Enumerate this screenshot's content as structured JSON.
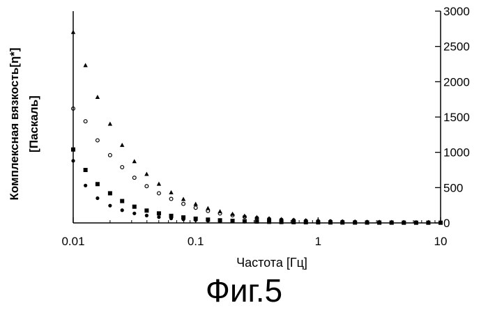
{
  "figure": {
    "caption": "Фиг.5"
  },
  "chart_data": {
    "type": "scatter",
    "title": "",
    "xlabel": "Частота [Гц]",
    "ylabel_lines": [
      "Комплексная вязкость[η*]",
      "[Паскаль]"
    ],
    "x_scale": "log",
    "xlim": [
      0.01,
      10
    ],
    "x_ticks": [
      0.01,
      0.1,
      1,
      10
    ],
    "x_tick_labels": [
      "0.01",
      "0.1",
      "1",
      "10"
    ],
    "ylim": [
      0,
      3000
    ],
    "y_ticks": [
      0,
      500,
      1000,
      1500,
      2000,
      2500,
      3000
    ],
    "y_tick_labels": [
      "0",
      "500",
      "1000",
      "1500",
      "2000",
      "2500",
      "3000"
    ],
    "y_axis_position": "right",
    "grid": false,
    "legend": "none",
    "marker_color": "#000000",
    "series": [
      {
        "marker": "triangle",
        "points": [
          [
            0.01,
            2700
          ],
          [
            0.0126,
            2230
          ],
          [
            0.0158,
            1780
          ],
          [
            0.02,
            1400
          ],
          [
            0.0251,
            1100
          ],
          [
            0.0316,
            870
          ],
          [
            0.0398,
            690
          ],
          [
            0.0501,
            550
          ],
          [
            0.0631,
            430
          ],
          [
            0.0794,
            335
          ],
          [
            0.1,
            265
          ],
          [
            0.126,
            205
          ],
          [
            0.158,
            160
          ],
          [
            0.2,
            125
          ],
          [
            0.251,
            98
          ],
          [
            0.316,
            78
          ],
          [
            0.398,
            62
          ],
          [
            0.501,
            50
          ],
          [
            0.631,
            41
          ],
          [
            0.794,
            34
          ],
          [
            1,
            28
          ],
          [
            1.26,
            23
          ],
          [
            1.58,
            19
          ],
          [
            2,
            16
          ],
          [
            2.51,
            13
          ],
          [
            3.16,
            11
          ],
          [
            3.98,
            9
          ],
          [
            5.01,
            8
          ],
          [
            6.31,
            7
          ],
          [
            7.94,
            6
          ],
          [
            10,
            5
          ]
        ]
      },
      {
        "marker": "circle-open",
        "points": [
          [
            0.01,
            1620
          ],
          [
            0.0126,
            1440
          ],
          [
            0.0158,
            1170
          ],
          [
            0.02,
            960
          ],
          [
            0.0251,
            790
          ],
          [
            0.0316,
            640
          ],
          [
            0.0398,
            520
          ],
          [
            0.0501,
            420
          ],
          [
            0.0631,
            340
          ],
          [
            0.0794,
            270
          ],
          [
            0.1,
            215
          ],
          [
            0.126,
            170
          ],
          [
            0.158,
            135
          ],
          [
            0.2,
            108
          ],
          [
            0.251,
            86
          ],
          [
            0.316,
            69
          ],
          [
            0.398,
            55
          ],
          [
            0.501,
            45
          ],
          [
            0.631,
            37
          ],
          [
            0.794,
            30
          ],
          [
            1,
            25
          ],
          [
            1.26,
            21
          ],
          [
            1.58,
            17
          ],
          [
            2,
            14
          ],
          [
            2.51,
            12
          ],
          [
            3.16,
            10
          ],
          [
            3.98,
            8
          ],
          [
            5.01,
            7
          ],
          [
            6.31,
            6
          ],
          [
            7.94,
            5
          ],
          [
            10,
            4
          ]
        ]
      },
      {
        "marker": "square",
        "points": [
          [
            0.01,
            1040
          ],
          [
            0.0126,
            750
          ],
          [
            0.0158,
            550
          ],
          [
            0.02,
            420
          ],
          [
            0.0251,
            310
          ],
          [
            0.0316,
            230
          ],
          [
            0.0398,
            175
          ],
          [
            0.0501,
            135
          ],
          [
            0.0631,
            100
          ],
          [
            0.0794,
            78
          ],
          [
            0.1,
            60
          ],
          [
            0.126,
            47
          ],
          [
            0.158,
            37
          ],
          [
            0.2,
            30
          ],
          [
            0.251,
            24
          ],
          [
            0.316,
            19
          ],
          [
            0.398,
            16
          ],
          [
            0.501,
            13
          ],
          [
            0.631,
            11
          ],
          [
            0.794,
            9
          ],
          [
            1,
            8
          ],
          [
            1.26,
            7
          ],
          [
            1.58,
            6
          ],
          [
            2,
            5
          ],
          [
            2.51,
            5
          ],
          [
            3.16,
            4
          ],
          [
            3.98,
            4
          ],
          [
            5.01,
            3
          ],
          [
            6.31,
            3
          ],
          [
            7.94,
            3
          ],
          [
            10,
            3
          ]
        ]
      },
      {
        "marker": "circle-filled",
        "points": [
          [
            0.01,
            880
          ],
          [
            0.0126,
            530
          ],
          [
            0.0158,
            350
          ],
          [
            0.02,
            245
          ],
          [
            0.0251,
            180
          ],
          [
            0.0316,
            135
          ],
          [
            0.0398,
            105
          ],
          [
            0.0501,
            82
          ],
          [
            0.0631,
            64
          ],
          [
            0.0794,
            50
          ],
          [
            0.1,
            40
          ],
          [
            0.126,
            32
          ],
          [
            0.158,
            26
          ],
          [
            0.2,
            21
          ],
          [
            0.251,
            17
          ],
          [
            0.316,
            14
          ],
          [
            0.398,
            12
          ],
          [
            0.501,
            10
          ],
          [
            0.631,
            8
          ],
          [
            0.794,
            7
          ],
          [
            1,
            6
          ],
          [
            1.26,
            5
          ],
          [
            1.58,
            5
          ],
          [
            2,
            4
          ],
          [
            2.51,
            4
          ],
          [
            3.16,
            3
          ],
          [
            3.98,
            3
          ],
          [
            5.01,
            3
          ],
          [
            6.31,
            2
          ],
          [
            7.94,
            2
          ],
          [
            10,
            2
          ]
        ]
      }
    ]
  }
}
